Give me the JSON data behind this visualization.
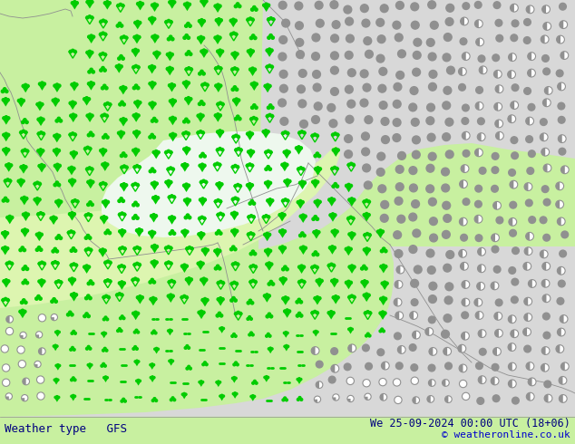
{
  "title_left": "Weather type   GFS",
  "title_right": "We 25-09-2024 00:00 UTC (18+06)",
  "copyright": "© weatheronline.co.uk",
  "bg_green": "#c8f0a0",
  "bg_gray": "#d8d8d8",
  "bg_white": "#f0f0f0",
  "bg_light_green": "#ddf5b0",
  "border_color": "#909090",
  "text_color": "#000080",
  "copyright_color": "#0000cc",
  "sym_green": "#00cc00",
  "sym_gray_dark": "#909090",
  "sym_gray_mid": "#a8a8a8",
  "sym_gray_light": "#c0c0c0",
  "fig_width": 6.34,
  "fig_height": 4.9,
  "dpi": 100
}
